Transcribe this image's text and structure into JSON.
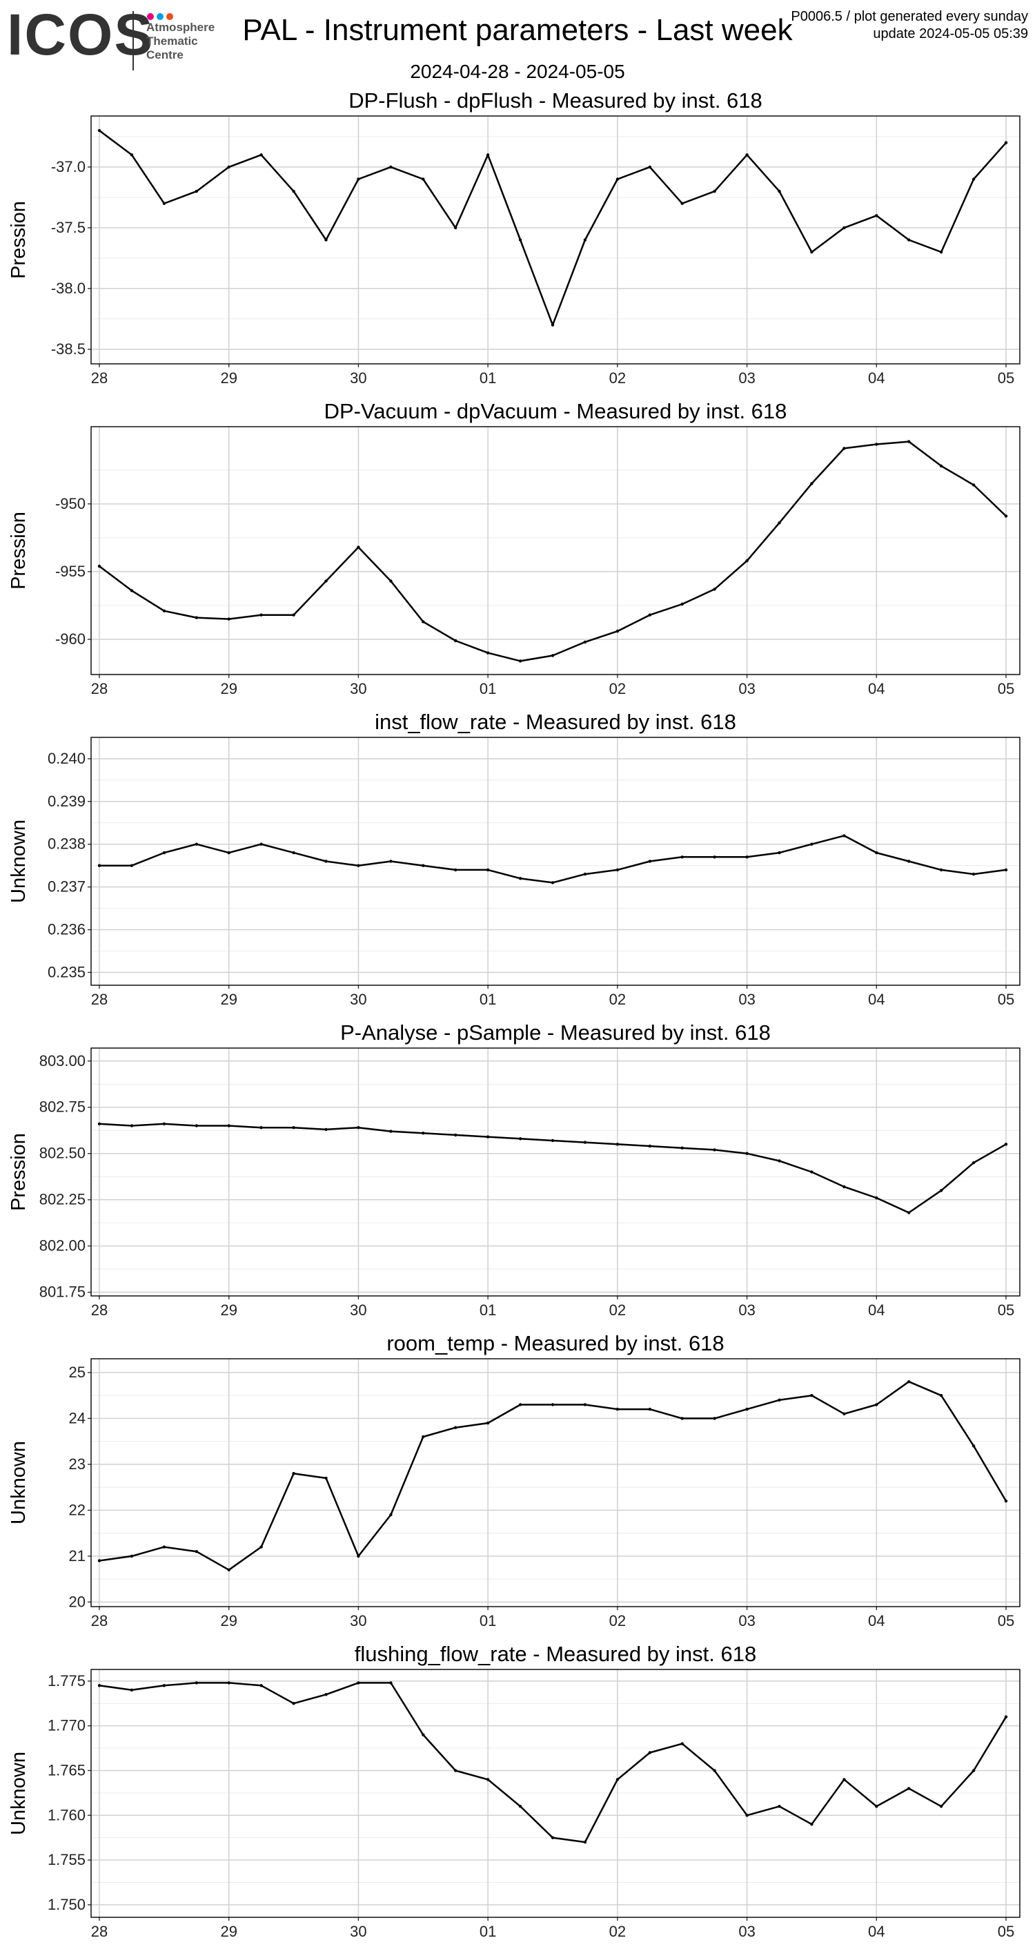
{
  "header": {
    "logo_text": "ICOS",
    "logo_sub": [
      "Atmosphere",
      "Thematic",
      "Centre"
    ],
    "logo_dot_colors": [
      "#e6007e",
      "#009fe3",
      "#e94e1b"
    ],
    "title": "PAL - Instrument parameters - Last week",
    "date_range": "2024-04-28 - 2024-05-05",
    "meta_line1": "P0006.5 / plot generated every sunday",
    "meta_line2": "update  2024-05-05 05:39"
  },
  "chart_data": [
    {
      "type": "line",
      "title": "DP-Flush - dpFlush - Measured by inst. 618",
      "ylabel": "Pression",
      "x_ticks": [
        "28",
        "29",
        "30",
        "01",
        "02",
        "03",
        "04",
        "05"
      ],
      "x": [
        "2024-04-28 00:00",
        "2024-04-28 06:00",
        "2024-04-28 12:00",
        "2024-04-28 18:00",
        "2024-04-29 00:00",
        "2024-04-29 06:00",
        "2024-04-29 12:00",
        "2024-04-29 18:00",
        "2024-04-30 00:00",
        "2024-04-30 06:00",
        "2024-04-30 12:00",
        "2024-04-30 18:00",
        "2024-05-01 00:00",
        "2024-05-01 06:00",
        "2024-05-01 12:00",
        "2024-05-01 18:00",
        "2024-05-02 00:00",
        "2024-05-02 06:00",
        "2024-05-02 12:00",
        "2024-05-02 18:00",
        "2024-05-03 00:00",
        "2024-05-03 06:00",
        "2024-05-03 12:00",
        "2024-05-03 18:00",
        "2024-05-04 00:00",
        "2024-05-04 06:00",
        "2024-05-04 12:00",
        "2024-05-04 18:00",
        "2024-05-05 00:00"
      ],
      "series": [
        {
          "values": [
            -36.7,
            -36.9,
            -37.3,
            -37.2,
            -37.0,
            -36.9,
            -37.2,
            -37.6,
            -37.1,
            -37.0,
            -37.1,
            -37.5,
            -36.9,
            -37.6,
            -38.3,
            -37.6,
            -37.1,
            -37.0,
            -37.3,
            -37.2,
            -36.9,
            -37.2,
            -37.7,
            -37.5,
            -37.4,
            -37.6,
            -37.7,
            -37.1,
            -36.8
          ]
        }
      ],
      "y_ticks": [
        "-37.0",
        "-37.5",
        "-38.0",
        "-38.5"
      ],
      "y_tick_values": [
        -37.0,
        -37.5,
        -38.0,
        -38.5
      ],
      "ylim": [
        -38.62,
        -36.58
      ]
    },
    {
      "type": "line",
      "title": "DP-Vacuum - dpVacuum - Measured by inst. 618",
      "ylabel": "Pression",
      "x_ticks": [
        "28",
        "29",
        "30",
        "01",
        "02",
        "03",
        "04",
        "05"
      ],
      "x": [
        "2024-04-28 00:00",
        "2024-04-28 06:00",
        "2024-04-28 12:00",
        "2024-04-28 18:00",
        "2024-04-29 00:00",
        "2024-04-29 06:00",
        "2024-04-29 12:00",
        "2024-04-29 18:00",
        "2024-04-30 00:00",
        "2024-04-30 06:00",
        "2024-04-30 12:00",
        "2024-04-30 18:00",
        "2024-05-01 00:00",
        "2024-05-01 06:00",
        "2024-05-01 12:00",
        "2024-05-01 18:00",
        "2024-05-02 00:00",
        "2024-05-02 06:00",
        "2024-05-02 12:00",
        "2024-05-02 18:00",
        "2024-05-03 00:00",
        "2024-05-03 06:00",
        "2024-05-03 12:00",
        "2024-05-03 18:00",
        "2024-05-04 00:00",
        "2024-05-04 06:00",
        "2024-05-04 12:00",
        "2024-05-04 18:00",
        "2024-05-05 00:00"
      ],
      "series": [
        {
          "values": [
            -954.6,
            -956.4,
            -957.9,
            -958.4,
            -958.5,
            -958.2,
            -958.2,
            -955.7,
            -953.2,
            -955.7,
            -958.7,
            -960.1,
            -961.0,
            -961.6,
            -961.2,
            -960.2,
            -959.4,
            -958.2,
            -957.4,
            -956.3,
            -954.2,
            -951.4,
            -948.5,
            -945.9,
            -945.6,
            -945.4,
            -947.2,
            -948.6,
            -950.9
          ]
        }
      ],
      "y_ticks": [
        "-950",
        "-955",
        "-960"
      ],
      "y_tick_values": [
        -950,
        -955,
        -960
      ],
      "ylim": [
        -962.6,
        -944.3
      ]
    },
    {
      "type": "line",
      "title": "inst_flow_rate - Measured by inst. 618",
      "ylabel": "Unknown",
      "x_ticks": [
        "28",
        "29",
        "30",
        "01",
        "02",
        "03",
        "04",
        "05"
      ],
      "x": [
        "2024-04-28 00:00",
        "2024-04-28 06:00",
        "2024-04-28 12:00",
        "2024-04-28 18:00",
        "2024-04-29 00:00",
        "2024-04-29 06:00",
        "2024-04-29 12:00",
        "2024-04-29 18:00",
        "2024-04-30 00:00",
        "2024-04-30 06:00",
        "2024-04-30 12:00",
        "2024-04-30 18:00",
        "2024-05-01 00:00",
        "2024-05-01 06:00",
        "2024-05-01 12:00",
        "2024-05-01 18:00",
        "2024-05-02 00:00",
        "2024-05-02 06:00",
        "2024-05-02 12:00",
        "2024-05-02 18:00",
        "2024-05-03 00:00",
        "2024-05-03 06:00",
        "2024-05-03 12:00",
        "2024-05-03 18:00",
        "2024-05-04 00:00",
        "2024-05-04 06:00",
        "2024-05-04 12:00",
        "2024-05-04 18:00",
        "2024-05-05 00:00"
      ],
      "series": [
        {
          "values": [
            0.2375,
            0.2375,
            0.2378,
            0.238,
            0.2378,
            0.238,
            0.2378,
            0.2376,
            0.2375,
            0.2376,
            0.2375,
            0.2374,
            0.2374,
            0.2372,
            0.2371,
            0.2373,
            0.2374,
            0.2376,
            0.2377,
            0.2377,
            0.2377,
            0.2378,
            0.238,
            0.2382,
            0.2378,
            0.2376,
            0.2374,
            0.2373,
            0.2374
          ]
        }
      ],
      "y_ticks": [
        "0.240",
        "0.239",
        "0.238",
        "0.237",
        "0.236",
        "0.235"
      ],
      "y_tick_values": [
        0.24,
        0.239,
        0.238,
        0.237,
        0.236,
        0.235
      ],
      "ylim": [
        0.2347,
        0.2405
      ]
    },
    {
      "type": "line",
      "title": "P-Analyse - pSample - Measured by inst. 618",
      "ylabel": "Pression",
      "x_ticks": [
        "28",
        "29",
        "30",
        "01",
        "02",
        "03",
        "04",
        "05"
      ],
      "x": [
        "2024-04-28 00:00",
        "2024-04-28 06:00",
        "2024-04-28 12:00",
        "2024-04-28 18:00",
        "2024-04-29 00:00",
        "2024-04-29 06:00",
        "2024-04-29 12:00",
        "2024-04-29 18:00",
        "2024-04-30 00:00",
        "2024-04-30 06:00",
        "2024-04-30 12:00",
        "2024-04-30 18:00",
        "2024-05-01 00:00",
        "2024-05-01 06:00",
        "2024-05-01 12:00",
        "2024-05-01 18:00",
        "2024-05-02 00:00",
        "2024-05-02 06:00",
        "2024-05-02 12:00",
        "2024-05-02 18:00",
        "2024-05-03 00:00",
        "2024-05-03 06:00",
        "2024-05-03 12:00",
        "2024-05-03 18:00",
        "2024-05-04 00:00",
        "2024-05-04 06:00",
        "2024-05-04 12:00",
        "2024-05-04 18:00",
        "2024-05-05 00:00"
      ],
      "series": [
        {
          "values": [
            802.66,
            802.65,
            802.66,
            802.65,
            802.65,
            802.64,
            802.64,
            802.63,
            802.64,
            802.62,
            802.61,
            802.6,
            802.59,
            802.58,
            802.57,
            802.56,
            802.55,
            802.54,
            802.53,
            802.52,
            802.5,
            802.46,
            802.4,
            802.32,
            802.26,
            802.18,
            802.3,
            802.45,
            802.55
          ]
        }
      ],
      "y_ticks": [
        "803.00",
        "802.75",
        "802.50",
        "802.25",
        "802.00",
        "801.75"
      ],
      "y_tick_values": [
        803.0,
        802.75,
        802.5,
        802.25,
        802.0,
        801.75
      ],
      "ylim": [
        801.73,
        803.07
      ]
    },
    {
      "type": "line",
      "title": "room_temp - Measured by inst. 618",
      "ylabel": "Unknown",
      "x_ticks": [
        "28",
        "29",
        "30",
        "01",
        "02",
        "03",
        "04",
        "05"
      ],
      "x": [
        "2024-04-28 00:00",
        "2024-04-28 06:00",
        "2024-04-28 12:00",
        "2024-04-28 18:00",
        "2024-04-29 00:00",
        "2024-04-29 06:00",
        "2024-04-29 12:00",
        "2024-04-29 18:00",
        "2024-04-30 00:00",
        "2024-04-30 06:00",
        "2024-04-30 12:00",
        "2024-04-30 18:00",
        "2024-05-01 00:00",
        "2024-05-01 06:00",
        "2024-05-01 12:00",
        "2024-05-01 18:00",
        "2024-05-02 00:00",
        "2024-05-02 06:00",
        "2024-05-02 12:00",
        "2024-05-02 18:00",
        "2024-05-03 00:00",
        "2024-05-03 06:00",
        "2024-05-03 12:00",
        "2024-05-03 18:00",
        "2024-05-04 00:00",
        "2024-05-04 06:00",
        "2024-05-04 12:00",
        "2024-05-04 18:00",
        "2024-05-05 00:00"
      ],
      "series": [
        {
          "values": [
            20.9,
            21.0,
            21.2,
            21.1,
            20.7,
            21.2,
            22.8,
            22.7,
            21.0,
            21.9,
            23.6,
            23.8,
            23.9,
            24.3,
            24.3,
            24.3,
            24.2,
            24.2,
            24.0,
            24.0,
            24.2,
            24.4,
            24.5,
            24.1,
            24.3,
            24.8,
            24.5,
            23.4,
            22.2
          ]
        }
      ],
      "y_ticks": [
        "25",
        "24",
        "23",
        "22",
        "21",
        "20"
      ],
      "y_tick_values": [
        25,
        24,
        23,
        22,
        21,
        20
      ],
      "ylim": [
        19.9,
        25.3
      ]
    },
    {
      "type": "line",
      "title": "flushing_flow_rate - Measured by inst. 618",
      "ylabel": "Unknown",
      "x_ticks": [
        "28",
        "29",
        "30",
        "01",
        "02",
        "03",
        "04",
        "05"
      ],
      "x": [
        "2024-04-28 00:00",
        "2024-04-28 06:00",
        "2024-04-28 12:00",
        "2024-04-28 18:00",
        "2024-04-29 00:00",
        "2024-04-29 06:00",
        "2024-04-29 12:00",
        "2024-04-29 18:00",
        "2024-04-30 00:00",
        "2024-04-30 06:00",
        "2024-04-30 12:00",
        "2024-04-30 18:00",
        "2024-05-01 00:00",
        "2024-05-01 06:00",
        "2024-05-01 12:00",
        "2024-05-01 18:00",
        "2024-05-02 00:00",
        "2024-05-02 06:00",
        "2024-05-02 12:00",
        "2024-05-02 18:00",
        "2024-05-03 00:00",
        "2024-05-03 06:00",
        "2024-05-03 12:00",
        "2024-05-03 18:00",
        "2024-05-04 00:00",
        "2024-05-04 06:00",
        "2024-05-04 12:00",
        "2024-05-04 18:00",
        "2024-05-05 00:00"
      ],
      "series": [
        {
          "values": [
            1.7745,
            1.774,
            1.7745,
            1.7748,
            1.7748,
            1.7745,
            1.7725,
            1.7735,
            1.7748,
            1.7748,
            1.769,
            1.765,
            1.764,
            1.761,
            1.7575,
            1.757,
            1.764,
            1.767,
            1.768,
            1.765,
            1.76,
            1.761,
            1.759,
            1.764,
            1.761,
            1.763,
            1.761,
            1.765,
            1.771
          ]
        }
      ],
      "y_ticks": [
        "1.775",
        "1.770",
        "1.765",
        "1.760",
        "1.755",
        "1.750"
      ],
      "y_tick_values": [
        1.775,
        1.77,
        1.765,
        1.76,
        1.755,
        1.75
      ],
      "ylim": [
        1.7486,
        1.7763
      ]
    }
  ]
}
